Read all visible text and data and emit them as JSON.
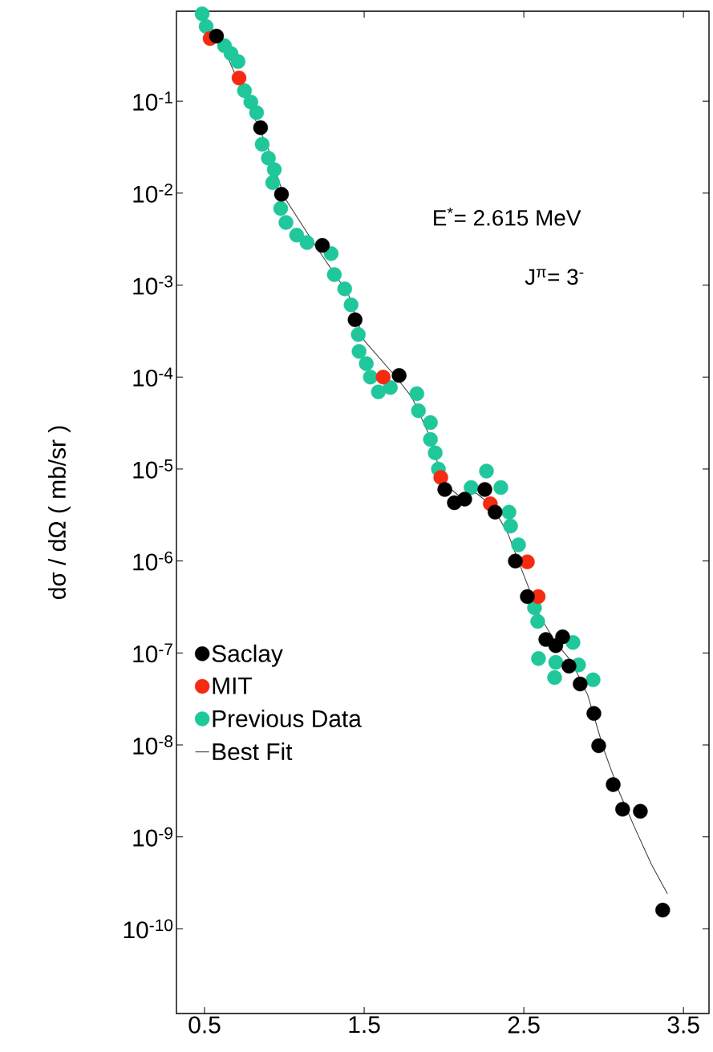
{
  "chart_data": {
    "type": "scatter",
    "ylabel": "dσ / dΩ  ( mb/sr )",
    "log": "y",
    "marker": "circle",
    "legend": "left",
    "xlim": [
      0.324,
      3.66
    ],
    "xticks": [
      0.5,
      1.5,
      2.5,
      3.5
    ],
    "ylim": [
      1.2e-11,
      0.95
    ],
    "yticks": [
      {
        "value": 0.1,
        "label": "10$^{-1}$"
      },
      {
        "value": 0.01,
        "label": "10$^{-2}$"
      },
      {
        "value": 0.001,
        "label": "10$^{-3}$"
      },
      {
        "value": 0.0001,
        "label": "10$^{-4}$"
      },
      {
        "value": 1e-05,
        "label": "10$^{-5}$"
      },
      {
        "value": 1e-06,
        "label": "10$^{-6}$"
      },
      {
        "value": 1e-07,
        "label": "10$^{-7}$"
      },
      {
        "value": 1e-08,
        "label": "10$^{-8}$"
      },
      {
        "value": 1e-09,
        "label": "10$^{-9}$"
      },
      {
        "value": 1e-10,
        "label": "10$^{-10}$"
      }
    ],
    "annotations": [
      "E$^{*}$= 2.615 MeV",
      "J$^{π}$= 3$^{-}$"
    ],
    "series": [
      {
        "name": "Saclay",
        "color": "#000000",
        "x": [
          0.575,
          0.851,
          0.982,
          1.238,
          1.443,
          1.719,
          2.005,
          2.065,
          2.13,
          2.256,
          2.32,
          2.447,
          2.522,
          2.638,
          2.7,
          2.743,
          2.783,
          2.853,
          2.939,
          2.969,
          3.06,
          3.119,
          3.23,
          3.37
        ],
        "values": [
          0.51,
          0.0515,
          0.0097,
          0.0027,
          0.00042,
          0.000104,
          6e-06,
          4.3e-06,
          4.7e-06,
          6e-06,
          3.4e-06,
          1e-06,
          4.1e-07,
          1.4e-07,
          1.2e-07,
          1.5e-07,
          7.2e-08,
          4.6e-08,
          2.2e-08,
          9.8e-09,
          3.7e-09,
          2e-09,
          1.9e-09,
          1.6e-10
        ]
      },
      {
        "name": "MIT",
        "color": "#f52a12",
        "x": [
          0.535,
          0.716,
          1.619,
          1.98,
          2.29,
          2.522,
          2.59
        ],
        "values": [
          0.48,
          0.179,
          0.0001,
          8.1e-06,
          4.2e-06,
          9.8e-07,
          4.1e-07
        ]
      },
      {
        "name": "Previous Data",
        "color": "#1fc79a",
        "x": [
          0.485,
          0.51,
          0.625,
          0.666,
          0.71,
          0.75,
          0.79,
          0.826,
          0.861,
          0.9,
          0.937,
          0.927,
          0.977,
          1.01,
          1.077,
          1.142,
          1.293,
          1.313,
          1.378,
          1.418,
          1.463,
          1.468,
          1.513,
          1.539,
          1.589,
          1.664,
          1.83,
          1.84,
          1.915,
          1.915,
          1.945,
          1.965,
          2.17,
          2.266,
          2.356,
          2.407,
          2.417,
          2.467,
          2.567,
          2.587,
          2.592,
          2.7,
          2.693,
          2.808,
          2.843,
          2.934
        ],
        "values": [
          0.89,
          0.65,
          0.4,
          0.33,
          0.27,
          0.13,
          0.098,
          0.075,
          0.034,
          0.024,
          0.018,
          0.013,
          0.0068,
          0.0048,
          0.0035,
          0.0029,
          0.0022,
          0.0013,
          0.00091,
          0.00061,
          0.00029,
          0.00019,
          0.00014,
          0.0001,
          6.9e-05,
          7.7e-05,
          6.6e-05,
          4.3e-05,
          3.2e-05,
          2.1e-05,
          1.5e-05,
          1e-05,
          6.3e-06,
          9.5e-06,
          6.3e-06,
          3.4e-06,
          2.4e-06,
          1.5e-06,
          3.1e-07,
          2.2e-07,
          8.7e-08,
          7.9e-08,
          5.4e-08,
          1.3e-07,
          7.4e-08,
          5.1e-08
        ]
      },
      {
        "name": "Best Fit",
        "type": "line",
        "marker": "none",
        "color": "#444444",
        "x": [
          0.6,
          0.8,
          0.9,
          1.0,
          1.2,
          1.3,
          1.4,
          1.5,
          1.6,
          1.7,
          1.8,
          1.9,
          2.0,
          2.1,
          2.2,
          2.3,
          2.4,
          2.5,
          2.6,
          2.7,
          2.8,
          2.9,
          3.0,
          3.1,
          3.2,
          3.3,
          3.4
        ],
        "values": [
          0.45,
          null,
          0.03,
          0.009,
          0.0026,
          null,
          0.0008,
          0.00025,
          null,
          0.0001,
          6e-05,
          2.5e-05,
          7e-06,
          5e-06,
          5.5e-06,
          4e-06,
          2e-06,
          7e-07,
          2.5e-07,
          1.3e-07,
          8e-08,
          3.5e-08,
          9e-09,
          3e-09,
          1.2e-09,
          5e-10,
          2.4e-10
        ]
      }
    ]
  }
}
